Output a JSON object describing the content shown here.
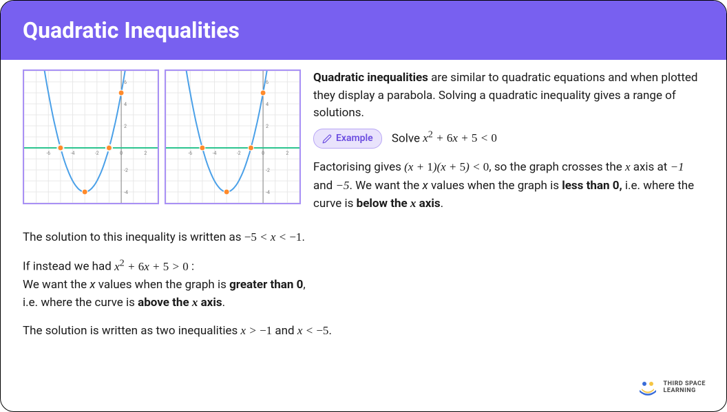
{
  "header": {
    "title": "Quadratic Inequalities"
  },
  "intro": {
    "p1_prefix_bold": "Quadratic inequalities",
    "p1_rest": " are similar to quadratic equations and when plotted they display a parabola. Solving a quadratic inequality gives a range of solutions.",
    "example_label": "Example",
    "example_solve": "Solve ",
    "example_formula": "x² + 6x + 5 < 0",
    "p2_a": "Factorising gives ",
    "p2_formula": "(x + 1)(x + 5) < 0",
    "p2_b": ", so the graph crosses the ",
    "p2_c": " axis at ",
    "p2_d": " and ",
    "p2_e": ". We want the ",
    "p2_f": " values when the graph is ",
    "p2_bold1": "less than 0,",
    "p2_g": " i.e. where the curve is ",
    "p2_bold2": "below the ",
    "p2_bold2_axis": " axis",
    "minus1": "−1",
    "minus5": "−5",
    "x_italic": "x"
  },
  "body": {
    "sol1_a": "The solution to this inequality is written as ",
    "sol1_formula": "−5 < x < −1",
    "sol1_b": ".",
    "alt_a": "If instead we had ",
    "alt_formula": "x² + 6x + 5 > 0",
    "alt_b": " :",
    "alt_line2a": "We want the ",
    "alt_line2b": " values when the graph is ",
    "alt_bold1": "greater than 0",
    "alt_line2c": ",",
    "alt_line3a": "i.e. where the curve is ",
    "alt_bold2": "above the ",
    "alt_bold2_axis": " axis",
    "alt_line3b": ".",
    "sol2_a": "The solution is written as two inequalities ",
    "sol2_f1": "x > −1",
    "sol2_b": " and ",
    "sol2_f2": "x < −5",
    "sol2_c": "."
  },
  "logo": {
    "line1": "THIRD SPACE",
    "line2": "LEARNING"
  },
  "chart": {
    "type": "line-parabola",
    "background_color": "#ffffff",
    "grid_color": "#e8e8e8",
    "axis_color": "#808080",
    "axis_label_color": "#808080",
    "axis_label_fontsize": 7,
    "curve_color": "#4aa0e8",
    "curve_width": 2,
    "xaxis_overlay_color": "#2bc48f",
    "xaxis_overlay_width": 2,
    "marker_fill": "#ff8a2b",
    "marker_stroke": "#ffffff",
    "marker_radius": 4,
    "xlim": [
      -8,
      3
    ],
    "ylim": [
      -5,
      7
    ],
    "xticks": [
      -6,
      -4,
      -2,
      0,
      2
    ],
    "yticks": [
      -4,
      -2,
      2,
      4,
      6
    ],
    "roots": [
      -5,
      -1
    ],
    "vertex": [
      -3,
      -4
    ],
    "graph1_markers": [
      [
        -5,
        0
      ],
      [
        -1,
        0
      ],
      [
        -3,
        -4
      ],
      [
        0,
        5
      ]
    ],
    "graph1_extra_green_markers": [
      [
        -5,
        0
      ],
      [
        -1,
        0
      ]
    ],
    "graph2_markers": [
      [
        -5,
        0
      ],
      [
        -1,
        0
      ],
      [
        -3,
        -4
      ],
      [
        0,
        5
      ]
    ]
  },
  "colors": {
    "header_bg": "#7860f0",
    "example_bg": "#e9e3fc",
    "example_border": "#b8a6f5",
    "example_text": "#6b4ce0",
    "graph_border": "#a890f5",
    "logo_blue": "#3a6cd8",
    "logo_yellow": "#f5c542"
  }
}
